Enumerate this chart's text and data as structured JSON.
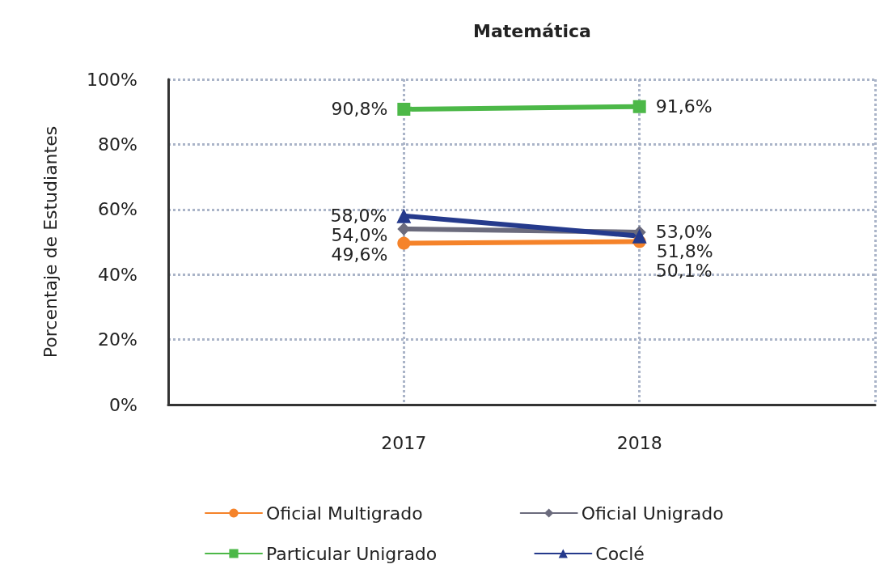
{
  "chart_data": {
    "type": "line",
    "title": "Matemática",
    "ylabel": "Porcentaje de Estudiantes",
    "categories": [
      "2017",
      "2018"
    ],
    "series": [
      {
        "name": "Oficial Multigrado",
        "color": "#f5832a",
        "marker": "circle",
        "values": [
          49.6,
          50.1
        ],
        "value_labels": [
          "49,6%",
          "50,1%"
        ]
      },
      {
        "name": "Oficial Unigrado",
        "color": "#6b6b7d",
        "marker": "diamond",
        "values": [
          54.0,
          53.0
        ],
        "value_labels": [
          "54,0%",
          "53,0%"
        ]
      },
      {
        "name": "Particular Unigrado",
        "color": "#4cb848",
        "marker": "square",
        "values": [
          90.8,
          91.6
        ],
        "value_labels": [
          "90,8%",
          "91,6%"
        ]
      },
      {
        "name": "Coclé",
        "color": "#253a8c",
        "marker": "triangle",
        "values": [
          58.0,
          51.8
        ],
        "value_labels": [
          "58,0%",
          "51,8%"
        ]
      }
    ],
    "ylim": [
      0,
      100
    ],
    "yticks": [
      {
        "value": 0,
        "label": "0%"
      },
      {
        "value": 20,
        "label": "20%"
      },
      {
        "value": 40,
        "label": "40%"
      },
      {
        "value": 60,
        "label": "60%"
      },
      {
        "value": 80,
        "label": "80%"
      },
      {
        "value": 100,
        "label": "100%"
      }
    ],
    "grid": true,
    "legend": "bottom",
    "line_style": "solid"
  }
}
